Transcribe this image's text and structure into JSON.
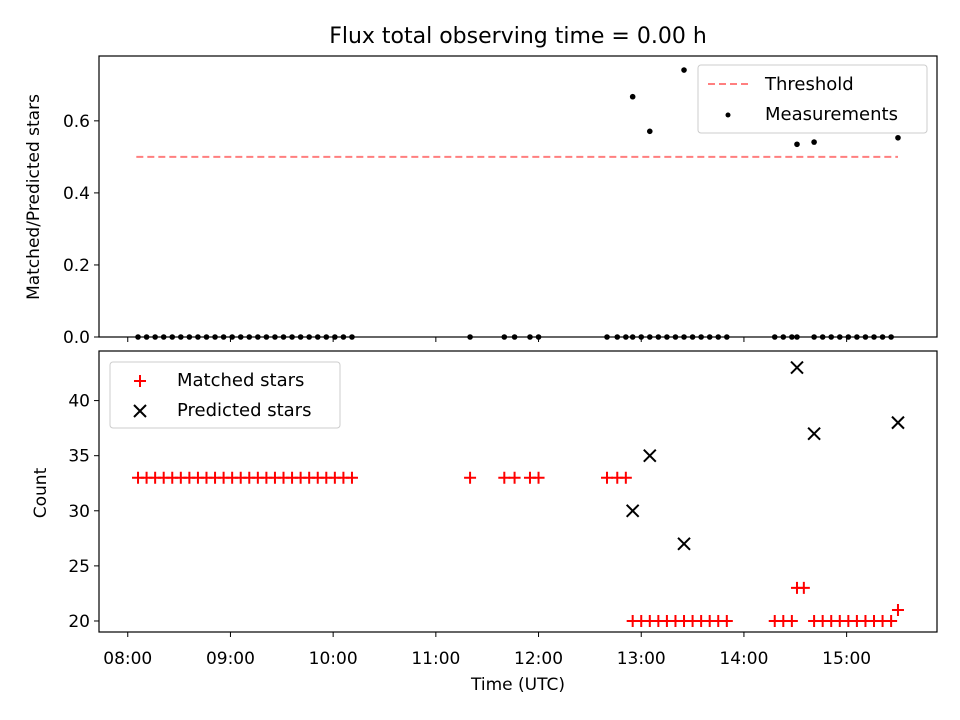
{
  "chart_data": [
    {
      "type": "scatter",
      "title": "Flux total observing time = 0.00 h",
      "xlabel": "",
      "ylabel": "Matched/Predicted stars",
      "ylim": [
        0,
        0.78
      ],
      "yticks": [
        0.0,
        0.2,
        0.4,
        0.6
      ],
      "ytick_labels": [
        "0.0",
        "0.2",
        "0.4",
        "0.6"
      ],
      "xlim_hours": [
        7.72,
        15.88
      ],
      "legend_position": "top-right",
      "series": [
        {
          "name": "Threshold",
          "style": "dashed-line",
          "color": "#ff7f7f",
          "x": [
            "08:05",
            "15:30"
          ],
          "y": [
            0.5,
            0.5
          ]
        },
        {
          "name": "Measurements",
          "style": "dot",
          "color": "#000000",
          "x": [
            "08:06",
            "08:11",
            "08:16",
            "08:21",
            "08:26",
            "08:31",
            "08:36",
            "08:41",
            "08:46",
            "08:51",
            "08:56",
            "09:01",
            "09:06",
            "09:11",
            "09:16",
            "09:21",
            "09:26",
            "09:31",
            "09:36",
            "09:41",
            "09:46",
            "09:51",
            "09:56",
            "10:01",
            "10:06",
            "10:11",
            "11:20",
            "11:40",
            "11:46",
            "11:55",
            "12:00",
            "12:40",
            "12:46",
            "12:51",
            "12:55",
            "13:00",
            "13:05",
            "13:10",
            "13:15",
            "13:20",
            "13:25",
            "13:30",
            "13:35",
            "13:40",
            "13:45",
            "13:50",
            "14:18",
            "14:23",
            "14:28",
            "14:31",
            "14:41",
            "14:46",
            "14:51",
            "14:56",
            "15:01",
            "15:06",
            "15:11",
            "15:16",
            "15:21",
            "15:26",
            "12:55",
            "13:05",
            "13:25",
            "14:31",
            "14:41",
            "15:30"
          ],
          "y": [
            0,
            0,
            0,
            0,
            0,
            0,
            0,
            0,
            0,
            0,
            0,
            0,
            0,
            0,
            0,
            0,
            0,
            0,
            0,
            0,
            0,
            0,
            0,
            0,
            0,
            0,
            0,
            0,
            0,
            0,
            0,
            0,
            0,
            0,
            0,
            0,
            0,
            0,
            0,
            0,
            0,
            0,
            0,
            0,
            0,
            0,
            0,
            0,
            0,
            0,
            0,
            0,
            0,
            0,
            0,
            0,
            0,
            0,
            0,
            0,
            0.667,
            0.571,
            0.741,
            0.535,
            0.541,
            0.553
          ]
        }
      ]
    },
    {
      "type": "scatter",
      "title": "",
      "xlabel": "Time (UTC)",
      "ylabel": "Count",
      "ylim": [
        19,
        44.5
      ],
      "yticks": [
        20,
        25,
        30,
        35,
        40
      ],
      "ytick_labels": [
        "20",
        "25",
        "30",
        "35",
        "40"
      ],
      "xlim_hours": [
        7.72,
        15.88
      ],
      "xticks": [
        "08:00",
        "09:00",
        "10:00",
        "11:00",
        "12:00",
        "13:00",
        "14:00",
        "15:00"
      ],
      "legend_position": "top-left",
      "series": [
        {
          "name": "Matched stars",
          "marker": "+",
          "color": "#ff0000",
          "x": [
            "08:06",
            "08:11",
            "08:16",
            "08:21",
            "08:26",
            "08:31",
            "08:36",
            "08:41",
            "08:46",
            "08:51",
            "08:56",
            "09:01",
            "09:06",
            "09:11",
            "09:16",
            "09:21",
            "09:26",
            "09:31",
            "09:36",
            "09:41",
            "09:46",
            "09:51",
            "09:56",
            "10:01",
            "10:06",
            "10:11",
            "11:20",
            "11:40",
            "11:46",
            "11:55",
            "12:00",
            "12:40",
            "12:46",
            "12:51",
            "12:55",
            "13:00",
            "13:05",
            "13:10",
            "13:15",
            "13:20",
            "13:25",
            "13:30",
            "13:35",
            "13:40",
            "13:45",
            "13:50",
            "14:18",
            "14:23",
            "14:28",
            "14:31",
            "14:35",
            "14:41",
            "14:46",
            "14:51",
            "14:56",
            "15:01",
            "15:06",
            "15:11",
            "15:16",
            "15:21",
            "15:26",
            "15:30"
          ],
          "y": [
            33,
            33,
            33,
            33,
            33,
            33,
            33,
            33,
            33,
            33,
            33,
            33,
            33,
            33,
            33,
            33,
            33,
            33,
            33,
            33,
            33,
            33,
            33,
            33,
            33,
            33,
            33,
            33,
            33,
            33,
            33,
            33,
            33,
            33,
            20,
            20,
            20,
            20,
            20,
            20,
            20,
            20,
            20,
            20,
            20,
            20,
            20,
            20,
            20,
            23,
            23,
            20,
            20,
            20,
            20,
            20,
            20,
            20,
            20,
            20,
            20,
            21
          ]
        },
        {
          "name": "Predicted stars",
          "marker": "x",
          "color": "#000000",
          "x": [
            "12:55",
            "13:05",
            "13:25",
            "14:31",
            "14:41",
            "15:30"
          ],
          "y": [
            30,
            35,
            27,
            43,
            37,
            38
          ]
        }
      ]
    }
  ]
}
